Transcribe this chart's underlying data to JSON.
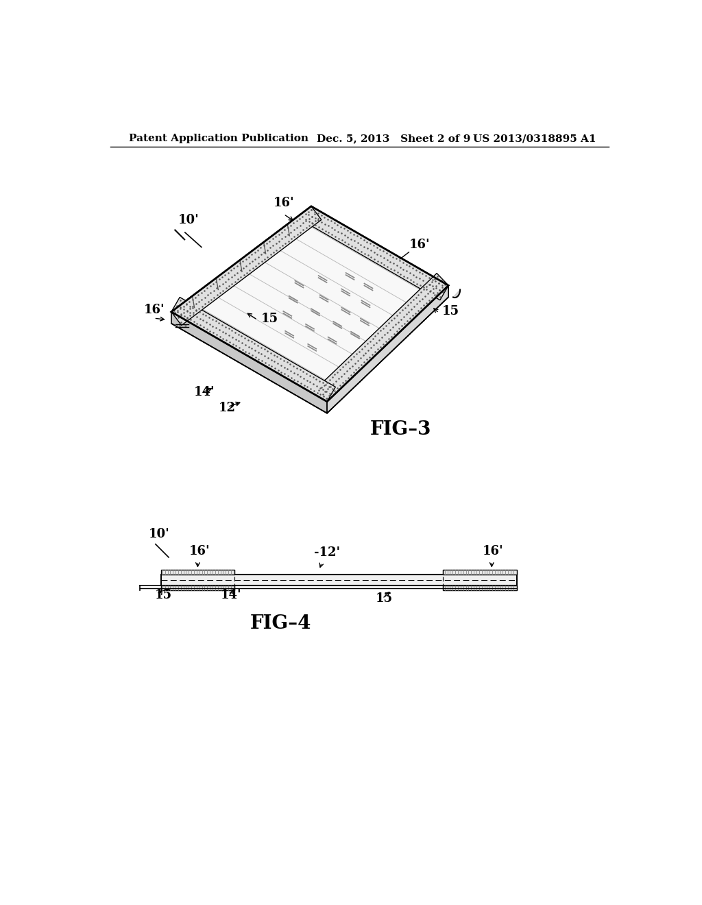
{
  "background_color": "#ffffff",
  "header_left": "Patent Application Publication",
  "header_mid": "Dec. 5, 2013   Sheet 2 of 9",
  "header_right": "US 2013/0318895 A1",
  "header_fontsize": 11,
  "fig3_label": "FIG–3",
  "fig4_label": "FIG–4",
  "fig_label_fontsize": 20,
  "annotation_fontsize": 13,
  "line_color": "#000000"
}
